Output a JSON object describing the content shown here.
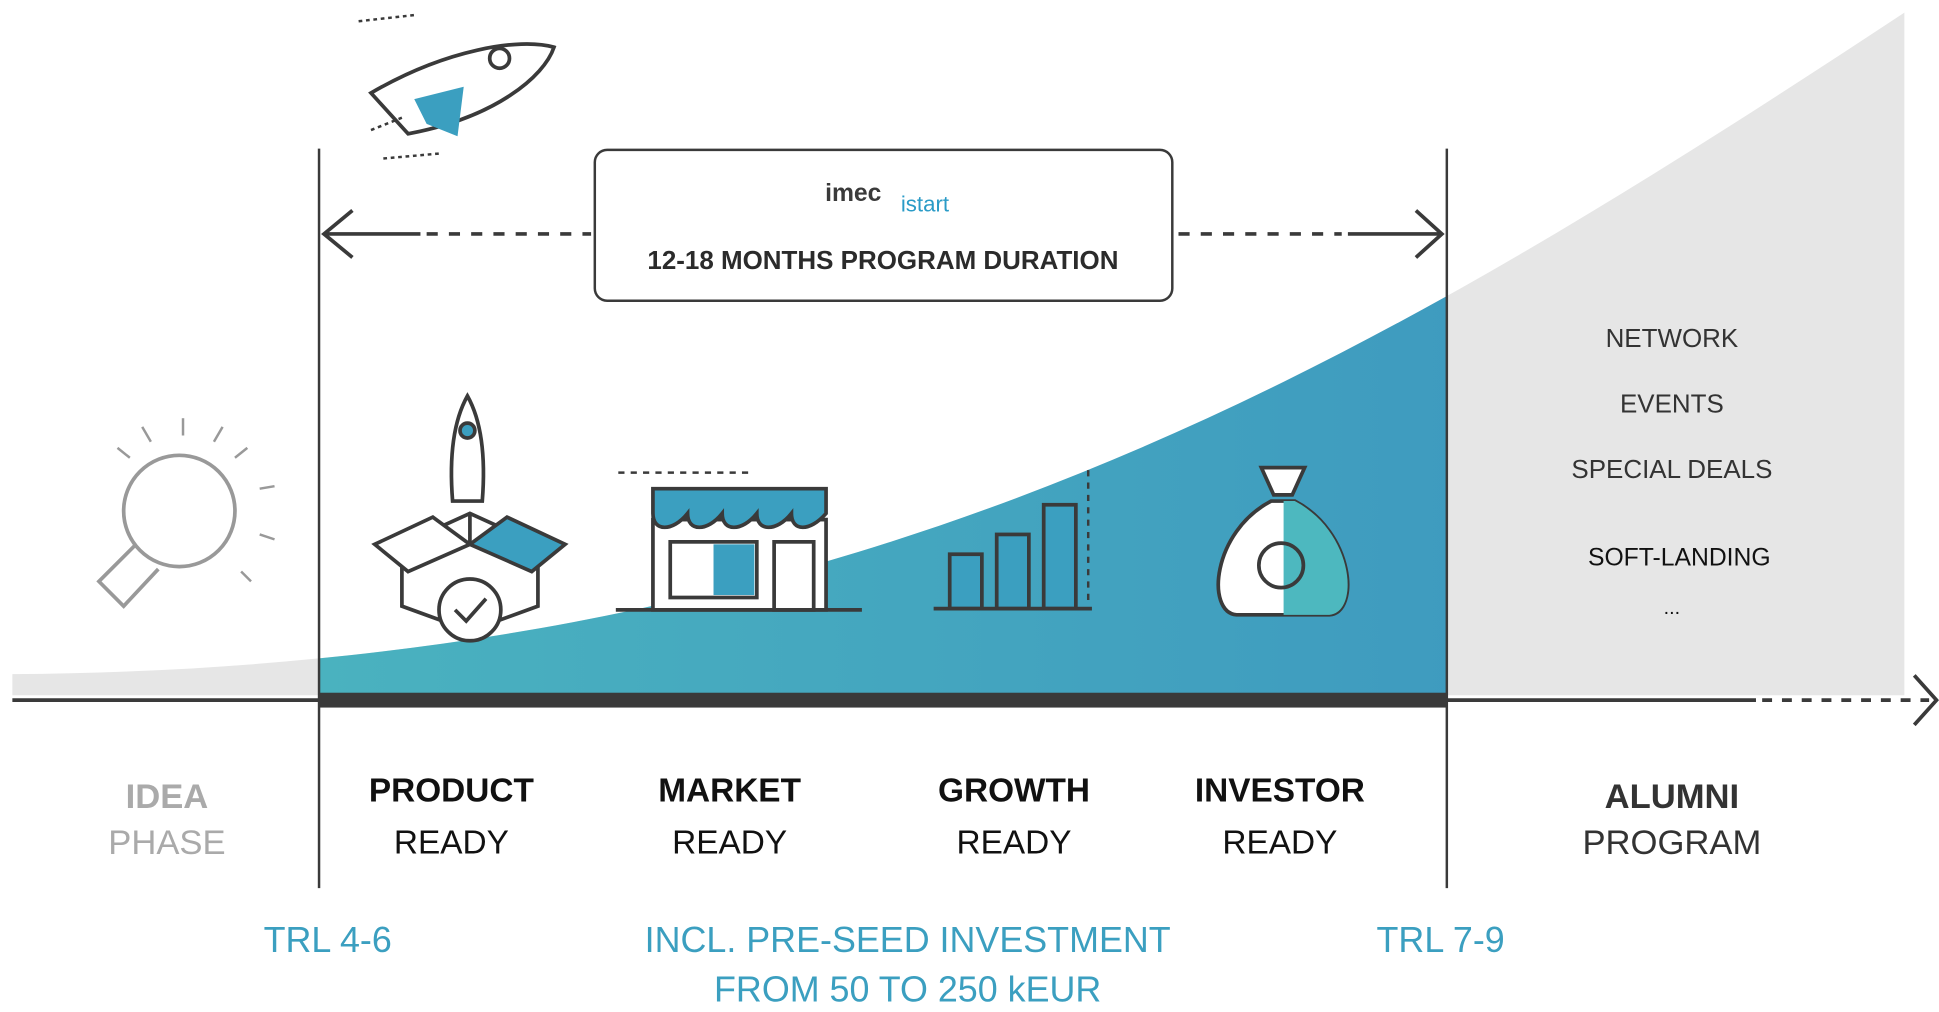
{
  "header": {
    "logo": "imec",
    "logo_sub": "istart",
    "duration": "12-18 MONTHS PROGRAM DURATION"
  },
  "phases": [
    {
      "title": "IDEA",
      "subtitle": "PHASE"
    },
    {
      "title": "PRODUCT",
      "subtitle": "READY"
    },
    {
      "title": "MARKET",
      "subtitle": "READY"
    },
    {
      "title": "GROWTH",
      "subtitle": "READY"
    },
    {
      "title": "INVESTOR",
      "subtitle": "READY"
    },
    {
      "title": "ALUMNI",
      "subtitle": "PROGRAM"
    }
  ],
  "alumni_benefits": [
    "NETWORK",
    "EVENTS",
    "SPECIAL DEALS",
    "SOFT-LANDING",
    "..."
  ],
  "trl_start": "TRL 4-6",
  "investment": [
    "INCL. PRE-SEED INVESTMENT",
    "FROM 50 TO 250 kEUR"
  ],
  "trl_end": "TRL 7-9"
}
